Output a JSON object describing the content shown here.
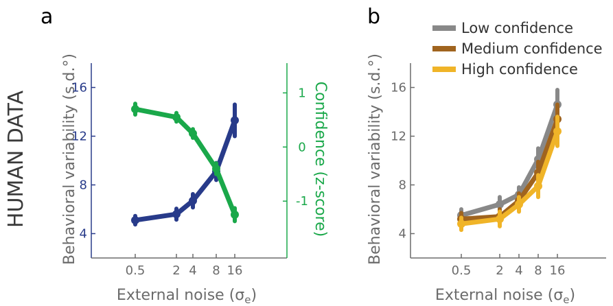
{
  "side_title": "HUMAN DATA",
  "colors": {
    "blue": "#283b8a",
    "green": "#1aa84a",
    "gray": "#888888",
    "brown": "#a0641e",
    "yellow": "#f0b428",
    "axis": "#6b6b6b"
  },
  "chart_data": [
    {
      "panel": "a",
      "type": "line",
      "x": [
        0.5,
        2,
        4,
        8,
        16
      ],
      "x_tick_labels": [
        "0.5",
        "2",
        "4",
        "8",
        "16"
      ],
      "xlabel_main": "External noise (σ",
      "xlabel_sub": "e",
      "xlabel_close": ")",
      "ylabel": "Behavioral variability (s.d.°)",
      "ylim": [
        2,
        18
      ],
      "y_ticks": [
        4,
        8,
        12,
        16
      ],
      "y2label": "Confidence (z-score)",
      "y2lim": [
        -2.05,
        1.55
      ],
      "y2_ticks": [
        -1,
        0,
        1
      ],
      "series": [
        {
          "axis": "left",
          "color": "#283b8a",
          "values": [
            5.1,
            5.6,
            6.7,
            9.1,
            13.3
          ],
          "errors": [
            0.35,
            0.45,
            0.55,
            0.7,
            1.3
          ]
        },
        {
          "axis": "right",
          "color": "#1aa84a",
          "values": [
            0.7,
            0.55,
            0.25,
            -0.4,
            -1.25
          ],
          "errors": [
            0.1,
            0.08,
            0.08,
            0.1,
            0.12
          ]
        }
      ]
    },
    {
      "panel": "b",
      "type": "line",
      "x": [
        0.5,
        2,
        4,
        8,
        16
      ],
      "x_tick_labels": [
        "0.5",
        "2",
        "4",
        "8",
        "16"
      ],
      "xlabel_main": "External noise (σ",
      "xlabel_sub": "e",
      "xlabel_close": ")",
      "ylabel": "Behavioral variability (s.d.°)",
      "ylim": [
        2,
        18
      ],
      "y_ticks": [
        4,
        8,
        12,
        16
      ],
      "legend_position": "top",
      "series": [
        {
          "name": "Low confidence",
          "color": "#888888",
          "values": [
            5.5,
            6.4,
            7.2,
            10.1,
            14.6
          ],
          "errors": [
            0.5,
            0.6,
            0.6,
            0.9,
            1.2
          ]
        },
        {
          "name": "Medium confidence",
          "color": "#a0641e",
          "values": [
            5.2,
            5.4,
            6.7,
            9.0,
            13.4
          ],
          "errors": [
            0.5,
            0.6,
            0.6,
            0.9,
            1.2
          ]
        },
        {
          "name": "High confidence",
          "color": "#f0b428",
          "values": [
            4.8,
            5.2,
            6.4,
            7.9,
            12.4
          ],
          "errors": [
            0.5,
            0.6,
            0.6,
            0.9,
            1.2
          ]
        }
      ]
    }
  ]
}
